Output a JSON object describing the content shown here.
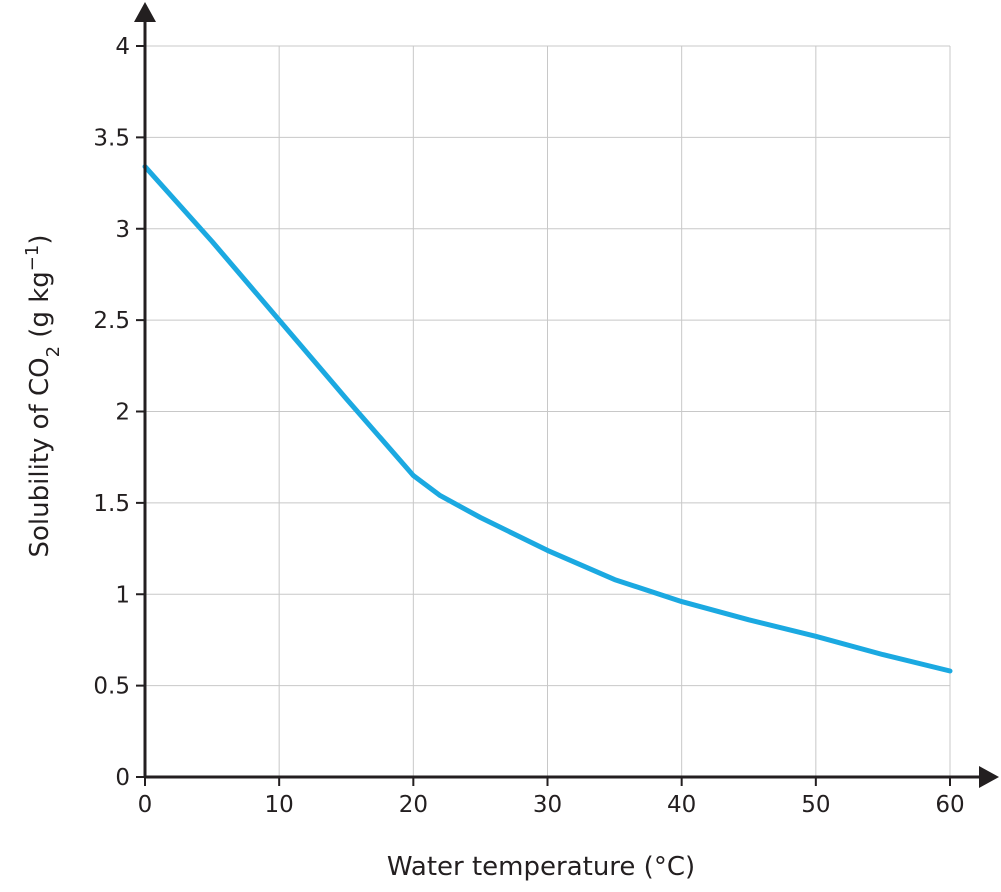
{
  "chart_data": {
    "type": "line",
    "title": "",
    "xlabel": "Water temperature (°C)",
    "ylabel": {
      "main": "Solubility of CO",
      "subscript": "2",
      "unit_open": " (g kg",
      "superscript": "−1",
      "unit_close": ")"
    },
    "xlim": [
      0,
      60
    ],
    "ylim": [
      0,
      4
    ],
    "xticks": [
      0,
      10,
      20,
      30,
      40,
      50,
      60
    ],
    "xtick_labels": [
      "0",
      "10",
      "20",
      "30",
      "40",
      "50",
      "60"
    ],
    "yticks": [
      0,
      0.5,
      1,
      1.5,
      2,
      2.5,
      3,
      3.5,
      4
    ],
    "ytick_labels": [
      "0",
      "0.5",
      "1",
      "1.5",
      "2",
      "2.5",
      "3",
      "3.5",
      "4"
    ],
    "grid": true,
    "series": [
      {
        "color": "#1ba9e1",
        "x": [
          0,
          5,
          10,
          15,
          20,
          22,
          25,
          30,
          35,
          40,
          45,
          50,
          55,
          60
        ],
        "y": [
          3.34,
          2.93,
          2.5,
          2.07,
          1.65,
          1.54,
          1.42,
          1.24,
          1.08,
          0.96,
          0.86,
          0.77,
          0.67,
          0.58
        ]
      }
    ]
  }
}
